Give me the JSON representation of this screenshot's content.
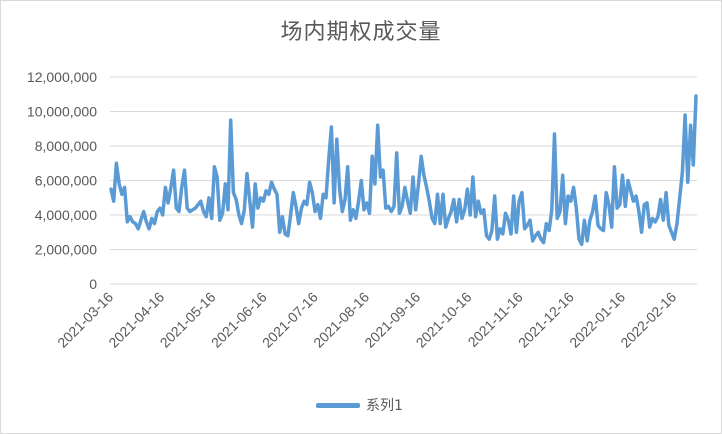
{
  "chart_data": {
    "type": "line",
    "title": "场内期权成交量",
    "xlabel": "",
    "ylabel": "",
    "ylim": [
      0,
      12000000
    ],
    "yticks": [
      "0",
      "2,000,000",
      "4,000,000",
      "6,000,000",
      "8,000,000",
      "10,000,000",
      "12,000,000"
    ],
    "xticks": [
      "2021-03-16",
      "2021-04-16",
      "2021-05-16",
      "2021-06-16",
      "2021-07-16",
      "2021-08-16",
      "2021-09-16",
      "2021-10-16",
      "2021-11-16",
      "2021-12-16",
      "2022-01-16",
      "2022-02-16"
    ],
    "grid": "horizontal",
    "legend_position": "bottom",
    "series_color": "#5b9bd5",
    "series": [
      {
        "name": "系列1",
        "values": [
          5.5,
          4.8,
          7.0,
          5.8,
          5.2,
          5.6,
          3.6,
          3.9,
          3.6,
          3.5,
          3.2,
          3.7,
          4.2,
          3.6,
          3.2,
          3.8,
          3.5,
          4.2,
          4.4,
          4.0,
          5.6,
          4.7,
          5.6,
          6.6,
          4.4,
          4.2,
          5.6,
          6.6,
          4.4,
          4.2,
          4.3,
          4.4,
          4.6,
          4.8,
          4.2,
          3.9,
          5.0,
          3.8,
          6.8,
          6.2,
          3.7,
          4.1,
          5.8,
          4.3,
          9.5,
          5.3,
          4.9,
          4.0,
          3.5,
          4.3,
          6.4,
          4.8,
          3.3,
          5.8,
          4.4,
          5.0,
          4.8,
          5.4,
          5.2,
          5.9,
          5.5,
          5.2,
          3.0,
          3.9,
          2.9,
          2.8,
          4.0,
          5.3,
          4.5,
          3.5,
          4.4,
          4.8,
          4.6,
          5.9,
          5.3,
          4.2,
          4.6,
          3.8,
          5.2,
          5.0,
          7.2,
          9.1,
          4.7,
          8.4,
          5.5,
          4.2,
          4.9,
          6.8,
          3.7,
          4.3,
          3.8,
          4.8,
          6.0,
          4.3,
          4.7,
          4.1,
          7.4,
          5.8,
          9.2,
          6.2,
          6.6,
          4.4,
          4.5,
          4.2,
          4.5,
          7.6,
          4.1,
          4.5,
          5.6,
          4.8,
          4.1,
          6.2,
          4.3,
          5.8,
          7.4,
          6.3,
          5.6,
          4.8,
          3.8,
          3.5,
          5.2,
          3.5,
          5.2,
          3.3,
          3.8,
          4.2,
          4.9,
          3.6,
          4.9,
          3.8,
          4.3,
          5.5,
          4.0,
          6.2,
          3.9,
          4.8,
          4.1,
          4.3,
          2.8,
          2.6,
          3.1,
          5.1,
          2.6,
          3.2,
          2.9,
          4.1,
          3.7,
          2.9,
          5.1,
          3.0,
          4.8,
          5.3,
          3.2,
          3.4,
          3.7,
          2.5,
          2.8,
          3.0,
          2.6,
          2.4,
          3.5,
          3.1,
          4.3,
          8.7,
          3.8,
          4.2,
          6.3,
          3.5,
          5.1,
          4.8,
          5.6,
          4.4,
          2.6,
          2.3,
          3.7,
          2.5,
          3.7,
          4.2,
          5.1,
          3.4,
          3.2,
          3.1,
          5.3,
          4.6,
          3.3,
          6.8,
          4.4,
          4.6,
          6.3,
          4.5,
          6.0,
          5.4,
          4.8,
          5.1,
          4.2,
          3.0,
          4.6,
          4.7,
          3.3,
          3.8,
          3.6,
          3.9,
          4.9,
          3.7,
          5.3,
          3.4,
          3.0,
          2.6,
          3.5,
          5.0,
          6.5,
          9.8,
          5.9,
          9.2,
          6.9,
          10.9
        ]
      }
    ]
  }
}
